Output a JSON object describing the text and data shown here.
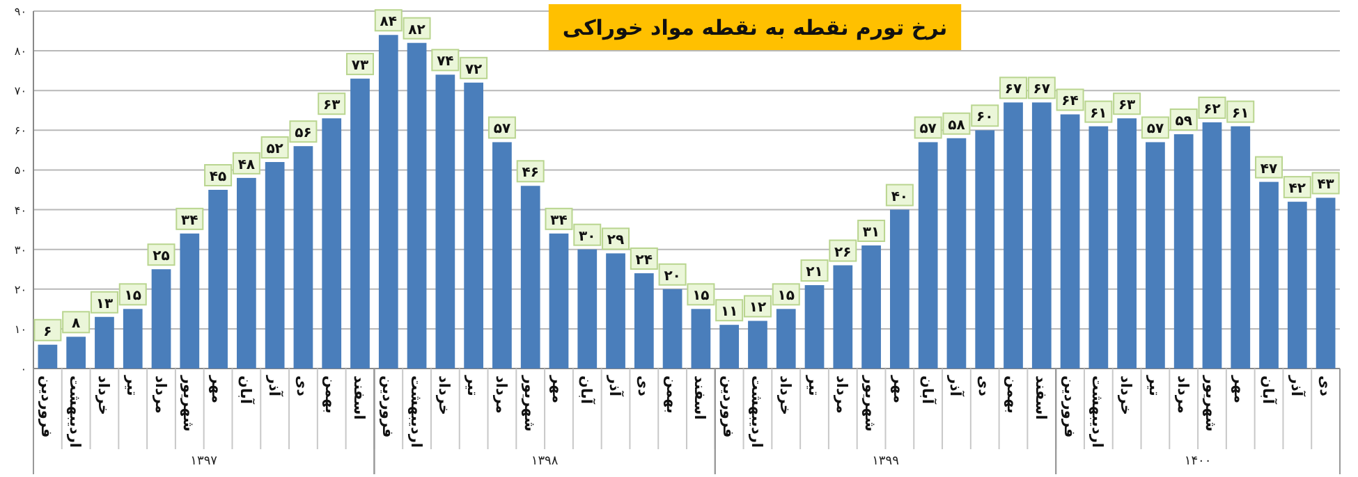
{
  "chart_data": {
    "type": "bar",
    "title": "نرخ تورم نقطه به نقطه مواد خوراکی",
    "categories": [
      "فروردین",
      "اردیبهشت",
      "خرداد",
      "تیر",
      "مرداد",
      "شهریور",
      "مهر",
      "آبان",
      "آذر",
      "دی",
      "بهمن",
      "اسفند",
      "فروردین",
      "اردیبهشت",
      "خرداد",
      "تیر",
      "مرداد",
      "شهریور",
      "مهر",
      "آبان",
      "آذر",
      "دی",
      "بهمن",
      "اسفند",
      "فروردین",
      "اردیبهشت",
      "خرداد",
      "تیر",
      "مرداد",
      "شهریور",
      "مهر",
      "آبان",
      "آذر",
      "دی",
      "بهمن",
      "اسفند",
      "فروردین",
      "اردیبهشت",
      "خرداد",
      "تیر",
      "مرداد",
      "شهریور",
      "مهر",
      "آبان",
      "آذر",
      "دی"
    ],
    "values": [
      6,
      8,
      13,
      15,
      25,
      34,
      45,
      48,
      52,
      56,
      63,
      73,
      84,
      82,
      74,
      72,
      57,
      46,
      34,
      30,
      29,
      24,
      20,
      15,
      11,
      12,
      15,
      21,
      26,
      31,
      40,
      57,
      58,
      60,
      67,
      67,
      64,
      61,
      63,
      57,
      59,
      62,
      61,
      47,
      42,
      43
    ],
    "value_labels": [
      "۶",
      "۸",
      "۱۳",
      "۱۵",
      "۲۵",
      "۳۴",
      "۴۵",
      "۴۸",
      "۵۲",
      "۵۶",
      "۶۳",
      "۷۳",
      "۸۴",
      "۸۲",
      "۷۴",
      "۷۲",
      "۵۷",
      "۴۶",
      "۳۴",
      "۳۰",
      "۲۹",
      "۲۴",
      "۲۰",
      "۱۵",
      "۱۱",
      "۱۲",
      "۱۵",
      "۲۱",
      "۲۶",
      "۳۱",
      "۴۰",
      "۵۷",
      "۵۸",
      "۶۰",
      "۶۷",
      "۶۷",
      "۶۴",
      "۶۱",
      "۶۳",
      "۵۷",
      "۵۹",
      "۶۲",
      "۶۱",
      "۴۷",
      "۴۲",
      "۴۳"
    ],
    "color": "#4a7ebb",
    "ylim": [
      0,
      90
    ],
    "yticks": [
      {
        "value": 0,
        "label": "۰"
      },
      {
        "value": 10,
        "label": "۱۰"
      },
      {
        "value": 20,
        "label": "۲۰"
      },
      {
        "value": 30,
        "label": "۳۰"
      },
      {
        "value": 40,
        "label": "۴۰"
      },
      {
        "value": 50,
        "label": "۵۰"
      },
      {
        "value": 60,
        "label": "۶۰"
      },
      {
        "value": 70,
        "label": "۷۰"
      },
      {
        "value": 80,
        "label": "۸۰"
      },
      {
        "value": 90,
        "label": "۹۰"
      }
    ],
    "grid": "y",
    "annotations": [
      "۱۳۹۷",
      "۱۳۹۸",
      "۱۳۹۹",
      "۱۴۰۰"
    ]
  }
}
